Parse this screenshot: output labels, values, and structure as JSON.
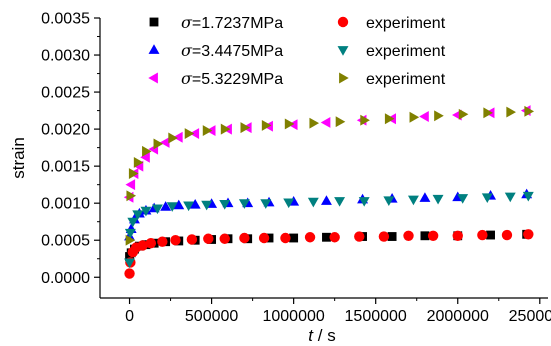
{
  "chart_data": {
    "type": "scatter",
    "title": "",
    "xlabel": "t / s",
    "xlabel_italic_part": "t",
    "xlabel_rest": " / s",
    "ylabel": "strain",
    "xlim": [
      -180000,
      2550000
    ],
    "ylim": [
      -0.00028,
      0.0035
    ],
    "xticks": [
      0,
      500000,
      1000000,
      1500000,
      2000000,
      2500000
    ],
    "xtick_labels": [
      "0",
      "500000",
      "1000000",
      "1500000",
      "2000000",
      "2500000"
    ],
    "yticks": [
      0,
      0.0005,
      0.001,
      0.0015,
      0.002,
      0.0025,
      0.003,
      0.0035
    ],
    "ytick_labels": [
      "0.0000",
      "0.0005",
      "0.0010",
      "0.0015",
      "0.0020",
      "0.0025",
      "0.0030",
      "0.0035"
    ],
    "grid": false,
    "legend_position": "top",
    "series": [
      {
        "name": "σ=1.7237MPa",
        "sigma_value": "=1.7237MPa",
        "marker": "square",
        "color": "#000000",
        "x": [
          0,
          10000,
          30000,
          60000,
          100000,
          150000,
          220000,
          300000,
          400000,
          500000,
          600000,
          720000,
          850000,
          1000000,
          1200000,
          1420000,
          1600000,
          1800000,
          2000000,
          2200000,
          2420000
        ],
        "y": [
          0.00028,
          0.00033,
          0.00038,
          0.00042,
          0.00044,
          0.00046,
          0.00048,
          0.00049,
          0.0005,
          0.00051,
          0.00052,
          0.00052,
          0.00053,
          0.00053,
          0.00054,
          0.00055,
          0.00055,
          0.00056,
          0.00056,
          0.00057,
          0.00058
        ]
      },
      {
        "name": "experiment",
        "marker": "circle",
        "color": "#ff0000",
        "x": [
          0,
          5000,
          20000,
          40000,
          80000,
          130000,
          200000,
          280000,
          380000,
          480000,
          580000,
          700000,
          820000,
          950000,
          1100000,
          1250000,
          1400000,
          1550000,
          1700000,
          1850000,
          2000000,
          2150000,
          2300000,
          2430000
        ],
        "y": [
          5e-05,
          0.0002,
          0.00034,
          0.0004,
          0.00043,
          0.00046,
          0.00048,
          0.0005,
          0.00051,
          0.00052,
          0.00052,
          0.00053,
          0.00053,
          0.00053,
          0.00054,
          0.00054,
          0.00055,
          0.00055,
          0.00056,
          0.00056,
          0.00056,
          0.00057,
          0.00057,
          0.00058
        ]
      },
      {
        "name": "σ=3.4475MPa",
        "sigma_value": "=3.4475MPa",
        "marker": "triangle-up",
        "color": "#0000ff",
        "x": [
          0,
          10000,
          30000,
          60000,
          100000,
          150000,
          220000,
          300000,
          400000,
          500000,
          600000,
          720000,
          850000,
          1000000,
          1200000,
          1420000,
          1600000,
          1800000,
          2000000,
          2200000,
          2420000
        ],
        "y": [
          0.00055,
          0.00065,
          0.00078,
          0.00086,
          0.0009,
          0.00093,
          0.00095,
          0.00097,
          0.00098,
          0.00099,
          0.001,
          0.001,
          0.00101,
          0.00102,
          0.00103,
          0.00105,
          0.00106,
          0.00107,
          0.00108,
          0.0011,
          0.00112
        ]
      },
      {
        "name": "experiment",
        "marker": "triangle-down",
        "color": "#008080",
        "x": [
          0,
          5000,
          20000,
          50000,
          100000,
          170000,
          260000,
          360000,
          470000,
          580000,
          700000,
          830000,
          970000,
          1120000,
          1280000,
          1430000,
          1580000,
          1730000,
          1880000,
          2030000,
          2180000,
          2320000,
          2430000
        ],
        "y": [
          0.0002,
          0.0006,
          0.00075,
          0.00085,
          0.0009,
          0.00093,
          0.00096,
          0.00097,
          0.00098,
          0.00099,
          0.001,
          0.001,
          0.00101,
          0.00102,
          0.00103,
          0.00103,
          0.00104,
          0.00105,
          0.00106,
          0.00107,
          0.00108,
          0.00109,
          0.0011
        ]
      },
      {
        "name": "σ=5.3229MPa",
        "sigma_value": "=5.3229MPa",
        "marker": "triangle-left",
        "color": "#ff00ff",
        "x": [
          0,
          10000,
          30000,
          60000,
          100000,
          150000,
          220000,
          300000,
          400000,
          500000,
          600000,
          720000,
          850000,
          1000000,
          1200000,
          1420000,
          1600000,
          1800000,
          2000000,
          2200000,
          2420000
        ],
        "y": [
          0.00108,
          0.00125,
          0.0014,
          0.0015,
          0.00162,
          0.00173,
          0.00182,
          0.00189,
          0.00194,
          0.00198,
          0.002,
          0.00202,
          0.00204,
          0.00206,
          0.00209,
          0.00212,
          0.00214,
          0.00217,
          0.00219,
          0.00222,
          0.00225
        ]
      },
      {
        "name": "experiment",
        "marker": "triangle-right",
        "color": "#808000",
        "x": [
          0,
          5000,
          20000,
          50000,
          100000,
          170000,
          260000,
          360000,
          470000,
          580000,
          700000,
          830000,
          970000,
          1120000,
          1280000,
          1430000,
          1580000,
          1730000,
          1880000,
          2030000,
          2180000,
          2320000,
          2430000
        ],
        "y": [
          0.0005,
          0.0011,
          0.0014,
          0.00155,
          0.0017,
          0.0018,
          0.00188,
          0.00194,
          0.00198,
          0.002,
          0.00202,
          0.00205,
          0.00207,
          0.00208,
          0.0021,
          0.00212,
          0.00214,
          0.00216,
          0.00218,
          0.0022,
          0.00222,
          0.00223,
          0.00224
        ]
      }
    ]
  }
}
